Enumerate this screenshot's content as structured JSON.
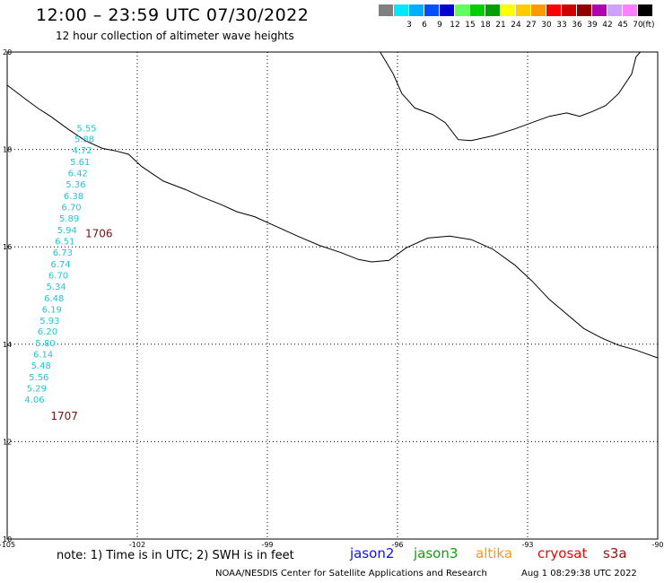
{
  "header": {
    "title": "12:00 – 23:59 UTC 07/30/2022",
    "subtitle": "12 hour collection of altimeter wave heights"
  },
  "legend": {
    "unit": "(ft)",
    "entries": [
      {
        "label": "",
        "color": "#808080"
      },
      {
        "label": "3",
        "color": "#00e8ff"
      },
      {
        "label": "6",
        "color": "#00b0ff"
      },
      {
        "label": "9",
        "color": "#0050ff"
      },
      {
        "label": "12",
        "color": "#0000d0"
      },
      {
        "label": "15",
        "color": "#60ff60"
      },
      {
        "label": "18",
        "color": "#00d000"
      },
      {
        "label": "21",
        "color": "#00a000"
      },
      {
        "label": "24",
        "color": "#ffff00"
      },
      {
        "label": "27",
        "color": "#ffcc00"
      },
      {
        "label": "30",
        "color": "#ff9900"
      },
      {
        "label": "33",
        "color": "#ff0000"
      },
      {
        "label": "36",
        "color": "#d00000"
      },
      {
        "label": "39",
        "color": "#900000"
      },
      {
        "label": "42",
        "color": "#b000b0"
      },
      {
        "label": "45",
        "color": "#d0a0ff"
      },
      {
        "label": "70",
        "color": "#ff80ff"
      },
      {
        "label": "",
        "color": "#000000"
      }
    ]
  },
  "map": {
    "lon_range": [
      -105,
      -90
    ],
    "lat_range": [
      10,
      20
    ],
    "lon_ticks": [
      "-105",
      "-102",
      "-99",
      "-96",
      "-93",
      "-90"
    ],
    "lat_ticks": [
      "20",
      "18",
      "16",
      "14",
      "12",
      "10"
    ],
    "track_color": "#22c4d8",
    "time_label_color": "#7a1010",
    "time_labels": [
      {
        "label": "1706",
        "lon": -103.2,
        "lat": 16.2
      },
      {
        "label": "1707",
        "lon": -104.0,
        "lat": 12.45
      }
    ],
    "track": [
      {
        "value": "5.55",
        "lon": -103.4,
        "lat": 18.37
      },
      {
        "value": "5.88",
        "lon": -103.45,
        "lat": 18.15
      },
      {
        "value": "4.72",
        "lon": -103.5,
        "lat": 17.92
      },
      {
        "value": "5.61",
        "lon": -103.55,
        "lat": 17.68
      },
      {
        "value": "6.42",
        "lon": -103.6,
        "lat": 17.45
      },
      {
        "value": "5.36",
        "lon": -103.65,
        "lat": 17.22
      },
      {
        "value": "6.38",
        "lon": -103.7,
        "lat": 16.98
      },
      {
        "value": "6.70",
        "lon": -103.75,
        "lat": 16.75
      },
      {
        "value": "5.89",
        "lon": -103.8,
        "lat": 16.52
      },
      {
        "value": "5.94",
        "lon": -103.85,
        "lat": 16.28
      },
      {
        "value": "6.51",
        "lon": -103.9,
        "lat": 16.05
      },
      {
        "value": "6.73",
        "lon": -103.95,
        "lat": 15.82
      },
      {
        "value": "6.74",
        "lon": -104.0,
        "lat": 15.58
      },
      {
        "value": "6.70",
        "lon": -104.05,
        "lat": 15.35
      },
      {
        "value": "5.34",
        "lon": -104.1,
        "lat": 15.12
      },
      {
        "value": "6.48",
        "lon": -104.15,
        "lat": 14.88
      },
      {
        "value": "6.19",
        "lon": -104.2,
        "lat": 14.65
      },
      {
        "value": "5.93",
        "lon": -104.25,
        "lat": 14.42
      },
      {
        "value": "6.20",
        "lon": -104.3,
        "lat": 14.2
      },
      {
        "value": "5.80",
        "lon": -104.35,
        "lat": 13.96
      },
      {
        "value": "6.14",
        "lon": -104.4,
        "lat": 13.73
      },
      {
        "value": "5.48",
        "lon": -104.45,
        "lat": 13.5
      },
      {
        "value": "5.56",
        "lon": -104.5,
        "lat": 13.26
      },
      {
        "value": "5.29",
        "lon": -104.55,
        "lat": 13.03
      },
      {
        "value": "4.06",
        "lon": -104.6,
        "lat": 12.8
      }
    ],
    "coastline": [
      [
        -105,
        19.32
      ],
      [
        -104.6,
        19.05
      ],
      [
        -104.3,
        18.85
      ],
      [
        -104.0,
        18.68
      ],
      [
        -103.6,
        18.42
      ],
      [
        -103.2,
        18.18
      ],
      [
        -102.8,
        18.02
      ],
      [
        -102.5,
        17.97
      ],
      [
        -102.2,
        17.9
      ],
      [
        -101.9,
        17.65
      ],
      [
        -101.4,
        17.35
      ],
      [
        -100.9,
        17.18
      ],
      [
        -100.5,
        17.02
      ],
      [
        -100.1,
        16.88
      ],
      [
        -99.7,
        16.72
      ],
      [
        -99.3,
        16.62
      ],
      [
        -98.8,
        16.42
      ],
      [
        -98.3,
        16.22
      ],
      [
        -97.8,
        16.03
      ],
      [
        -97.3,
        15.88
      ],
      [
        -96.9,
        15.74
      ],
      [
        -96.6,
        15.69
      ],
      [
        -96.2,
        15.72
      ],
      [
        -95.8,
        15.98
      ],
      [
        -95.3,
        16.18
      ],
      [
        -94.8,
        16.22
      ],
      [
        -94.3,
        16.15
      ],
      [
        -93.8,
        15.95
      ],
      [
        -93.3,
        15.63
      ],
      [
        -92.9,
        15.3
      ],
      [
        -92.5,
        14.92
      ],
      [
        -92.1,
        14.62
      ],
      [
        -91.7,
        14.32
      ],
      [
        -91.3,
        14.13
      ],
      [
        -90.9,
        13.98
      ],
      [
        -90.5,
        13.88
      ],
      [
        -90.0,
        13.72
      ]
    ],
    "gulf_coast": [
      [
        -96.4,
        20.0
      ],
      [
        -96.1,
        19.55
      ],
      [
        -95.9,
        19.15
      ],
      [
        -95.6,
        18.85
      ],
      [
        -95.2,
        18.72
      ],
      [
        -94.9,
        18.55
      ],
      [
        -94.6,
        18.2
      ],
      [
        -94.3,
        18.18
      ],
      [
        -93.8,
        18.28
      ],
      [
        -93.3,
        18.42
      ],
      [
        -92.9,
        18.55
      ],
      [
        -92.5,
        18.68
      ],
      [
        -92.1,
        18.75
      ],
      [
        -91.8,
        18.68
      ],
      [
        -91.5,
        18.78
      ],
      [
        -91.2,
        18.9
      ],
      [
        -90.9,
        19.15
      ],
      [
        -90.6,
        19.55
      ],
      [
        -90.5,
        19.9
      ],
      [
        -90.2,
        20.2
      ]
    ]
  },
  "footer": {
    "note": "note:  1) Time is in UTC; 2) SWH is in feet",
    "credit": "NOAA/NESDIS Center for Satellite Applications and Research",
    "timestamp": "Aug  1 08:29:38 UTC 2022",
    "satellites": [
      {
        "name": "jason2",
        "color": "#1010ff"
      },
      {
        "name": "jason3",
        "color": "#10a010"
      },
      {
        "name": "altika",
        "color": "#ff9900"
      },
      {
        "name": "cryosat",
        "color": "#ff0000"
      },
      {
        "name": "s3a",
        "color": "#a01010"
      }
    ]
  }
}
